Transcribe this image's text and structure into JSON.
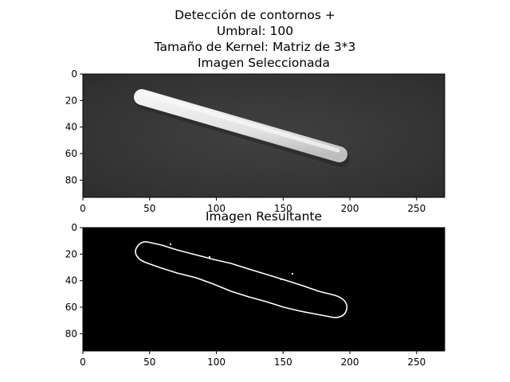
{
  "figure": {
    "suptitle_lines": [
      "Detección de contornos +",
      "Umbral: 100",
      "Tamaño de Kernel:  Matriz de 3*3"
    ]
  },
  "panels": [
    {
      "id": "selected",
      "title": "Imagen Seleccionada",
      "image_kind": "grayscale-photo",
      "image_description_name": "popsicle-stick-photo",
      "x_ticks": [
        "0",
        "50",
        "100",
        "150",
        "200",
        "250"
      ],
      "y_ticks": [
        "0",
        "20",
        "40",
        "60",
        "80"
      ],
      "x_tick_values": [
        0,
        50,
        100,
        150,
        200,
        250
      ],
      "y_tick_values": [
        0,
        20,
        40,
        60,
        80
      ],
      "x_range": [
        0,
        271
      ],
      "y_range": [
        93,
        0
      ],
      "colors": {
        "background": "#3b3b3b",
        "object": "#e6e6e6"
      }
    },
    {
      "id": "result",
      "title": "Imagen Resultante",
      "image_kind": "binary-edge-map",
      "image_description_name": "stick-contour-edges",
      "x_ticks": [
        "0",
        "50",
        "100",
        "150",
        "200",
        "250"
      ],
      "y_ticks": [
        "0",
        "20",
        "40",
        "60",
        "80"
      ],
      "x_tick_values": [
        0,
        50,
        100,
        150,
        200,
        250
      ],
      "y_tick_values": [
        0,
        20,
        40,
        60,
        80
      ],
      "x_range": [
        0,
        271
      ],
      "y_range": [
        93,
        0
      ],
      "colors": {
        "background": "#000000",
        "edge": "#ffffff"
      }
    }
  ]
}
